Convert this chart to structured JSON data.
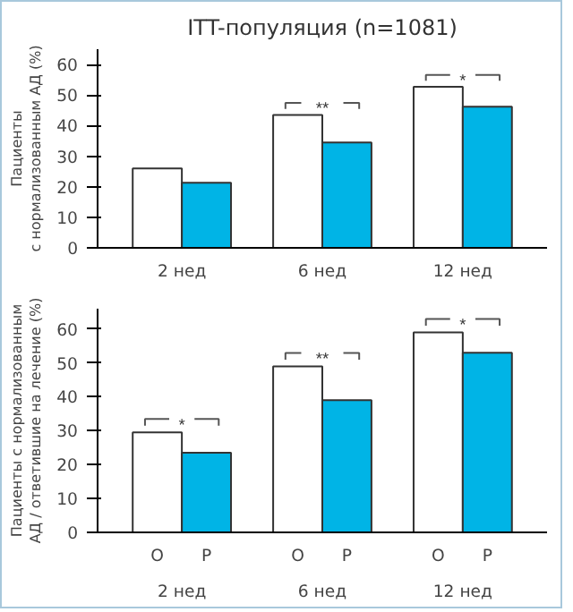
{
  "chart_data": [
    {
      "type": "bar",
      "title": "ITT-популяция (n=1081)",
      "ylabel": "Пациенты\nс нормализованным АД (%)",
      "categories": [
        "2 нед",
        "6 нед",
        "12 нед"
      ],
      "ylim": [
        0,
        65
      ],
      "yticks": [
        0,
        10,
        20,
        30,
        40,
        50,
        60
      ],
      "grid": false,
      "series": [
        {
          "color": "#ffffff",
          "values": [
            26,
            43.5,
            52.7
          ]
        },
        {
          "color": "#00b4e6",
          "values": [
            21.3,
            34.5,
            46.2
          ]
        }
      ],
      "annotations": [
        "**",
        "*"
      ]
    },
    {
      "type": "bar",
      "ylabel": "Пациенты с нормализованным\nАД / ответившие на лечение (%)",
      "categories": [
        "2 нед",
        "6 нед",
        "12 нед"
      ],
      "ylim": [
        0,
        66
      ],
      "yticks": [
        0,
        10,
        20,
        30,
        40,
        50,
        60
      ],
      "grid": false,
      "series": [
        {
          "name": "O",
          "color": "#ffffff",
          "values": [
            29.5,
            49,
            59
          ]
        },
        {
          "name": "P",
          "color": "#00b4e6",
          "values": [
            23.5,
            39,
            53
          ]
        }
      ],
      "annotations": [
        "*",
        "**",
        "*"
      ]
    }
  ]
}
